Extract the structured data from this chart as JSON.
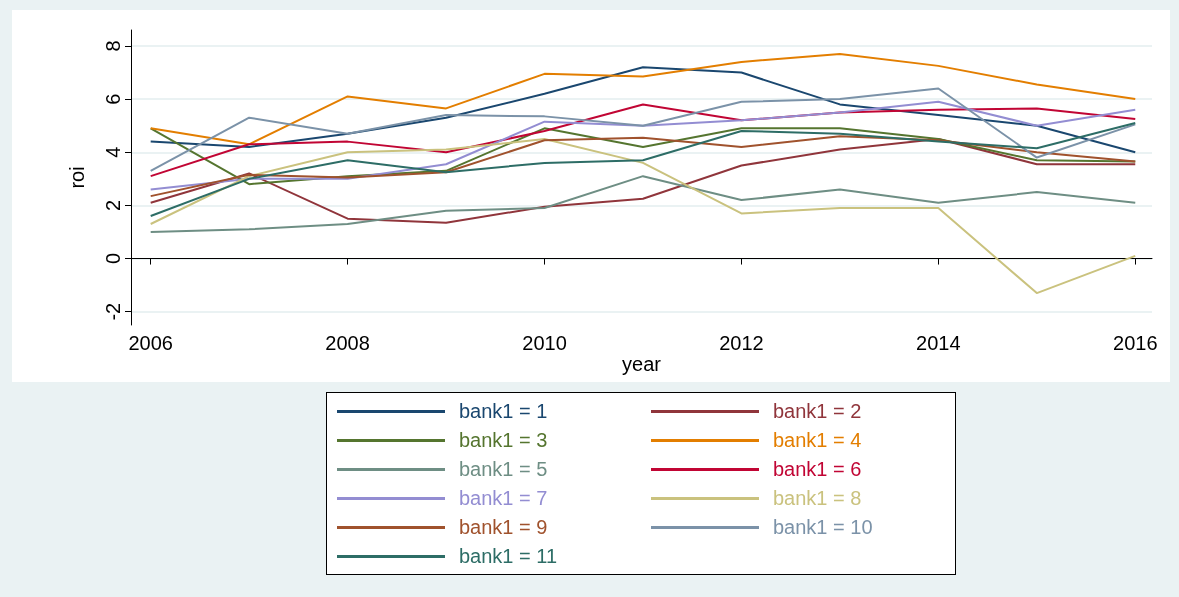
{
  "chart_data": {
    "type": "line",
    "xlabel": "year",
    "ylabel": "roi",
    "x": [
      2006,
      2007,
      2008,
      2009,
      2010,
      2011,
      2012,
      2013,
      2014,
      2015,
      2016
    ],
    "xlim": [
      2005.8,
      2016.17
    ],
    "xticks": [
      2006,
      2008,
      2010,
      2012,
      2014,
      2016
    ],
    "ylim": [
      -2.5,
      8.6
    ],
    "yticks": [
      -2,
      0,
      2,
      4,
      6,
      8
    ],
    "grid": "y",
    "legend": "bottom",
    "marker": "none",
    "line_style": "solid",
    "series": [
      {
        "name": "bank1 = 1",
        "color": "#1a476f",
        "values": [
          4.4,
          4.2,
          4.7,
          5.3,
          6.2,
          7.2,
          7.0,
          5.8,
          5.4,
          5.0,
          4.0
        ]
      },
      {
        "name": "bank1 = 2",
        "color": "#90353b",
        "values": [
          2.1,
          3.2,
          1.5,
          1.35,
          1.95,
          2.25,
          3.5,
          4.1,
          4.5,
          3.55,
          3.55
        ]
      },
      {
        "name": "bank1 = 3",
        "color": "#55752f",
        "values": [
          4.9,
          2.8,
          3.1,
          3.3,
          4.9,
          4.2,
          4.9,
          4.9,
          4.5,
          3.7,
          3.65
        ]
      },
      {
        "name": "bank1 = 4",
        "color": "#e37e00",
        "values": [
          4.9,
          4.3,
          6.1,
          5.65,
          6.95,
          6.85,
          7.4,
          7.7,
          7.25,
          6.55,
          6.0
        ]
      },
      {
        "name": "bank1 = 5",
        "color": "#6e8e84",
        "values": [
          1.0,
          1.1,
          1.3,
          1.8,
          1.9,
          3.1,
          2.2,
          2.6,
          2.1,
          2.5,
          2.1
        ]
      },
      {
        "name": "bank1 = 6",
        "color": "#c10534",
        "values": [
          3.1,
          4.3,
          4.4,
          4.0,
          4.8,
          5.8,
          5.2,
          5.5,
          5.6,
          5.65,
          5.25
        ]
      },
      {
        "name": "bank1 = 7",
        "color": "#938dd2",
        "values": [
          2.6,
          3.0,
          3.0,
          3.55,
          5.15,
          5.0,
          5.2,
          5.5,
          5.9,
          5.0,
          5.6
        ]
      },
      {
        "name": "bank1 = 8",
        "color": "#cac27e",
        "values": [
          1.3,
          3.1,
          4.0,
          4.1,
          4.5,
          3.6,
          1.7,
          1.9,
          1.9,
          -1.3,
          0.1
        ]
      },
      {
        "name": "bank1 = 9",
        "color": "#a0522d",
        "values": [
          2.35,
          3.15,
          3.05,
          3.25,
          4.45,
          4.55,
          4.2,
          4.6,
          4.45,
          4.0,
          3.65
        ]
      },
      {
        "name": "bank1 = 10",
        "color": "#7b92a8",
        "values": [
          3.3,
          5.3,
          4.7,
          5.4,
          5.35,
          5.0,
          5.9,
          6.0,
          6.4,
          3.8,
          5.05
        ]
      },
      {
        "name": "bank1 = 11",
        "color": "#2d6d66",
        "values": [
          1.6,
          3.0,
          3.7,
          3.25,
          3.6,
          3.7,
          4.8,
          4.7,
          4.4,
          4.15,
          5.1
        ]
      }
    ]
  }
}
